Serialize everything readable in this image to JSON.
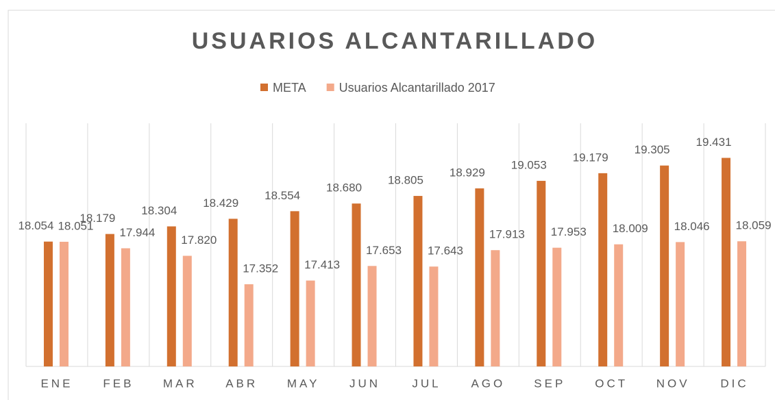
{
  "chart_data": {
    "type": "bar",
    "title": "USUARIOS ALCANTARILLADO",
    "categories": [
      "ENE",
      "FEB",
      "MAR",
      "ABR",
      "MAY",
      "JUN",
      "JUL",
      "AGO",
      "SEP",
      "OCT",
      "NOV",
      "DIC"
    ],
    "series": [
      {
        "name": "META",
        "color": "#d2702f",
        "values": [
          18054,
          18179,
          18304,
          18429,
          18554,
          18680,
          18805,
          18929,
          19053,
          19179,
          19305,
          19431
        ],
        "value_labels": [
          "18.054",
          "18.179",
          "18.304",
          "18.429",
          "18.554",
          "18.680",
          "18.805",
          "18.929",
          "19.053",
          "19.179",
          "19.305",
          "19.431"
        ]
      },
      {
        "name": "Usuarios Alcantarillado 2017",
        "color": "#f3a98a",
        "values": [
          18051,
          17944,
          17820,
          17352,
          17413,
          17653,
          17643,
          17913,
          17953,
          18009,
          18046,
          18059
        ],
        "value_labels": [
          "18.051",
          "17.944",
          "17.820",
          "17.352",
          "17.413",
          "17.653",
          "17.643",
          "17.913",
          "17.953",
          "18.009",
          "18.046",
          "18.059"
        ]
      }
    ],
    "ylim": [
      16000,
      20000
    ],
    "legend": "top"
  }
}
